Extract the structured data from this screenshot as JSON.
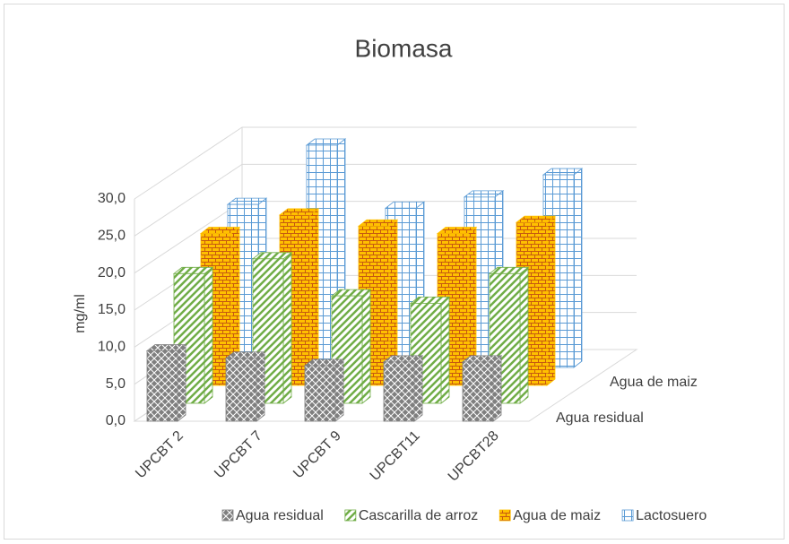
{
  "chart_data": {
    "type": "bar3d",
    "title": "Biomasa",
    "y_label": "mg/ml",
    "categories": [
      "UPCBT 2",
      "UPCBT 7",
      "UPCBT 9",
      "UPCBT11",
      "UPCBT28"
    ],
    "series": [
      {
        "name": "Agua residual",
        "color": "#7f7f7f",
        "values": [
          9.5,
          8.5,
          7.5,
          8,
          8
        ]
      },
      {
        "name": "Cascarilla de arroz",
        "color": "#70ad47",
        "values": [
          17.5,
          19.5,
          14.5,
          13.5,
          17.5
        ]
      },
      {
        "name": "Agua de maiz",
        "color": "#ffc000",
        "values": [
          20.5,
          23,
          21.5,
          20.5,
          22
        ]
      },
      {
        "name": "Lactosuero",
        "color": "#5b9bd5",
        "values": [
          22,
          30,
          21.5,
          23,
          26
        ]
      }
    ],
    "ylim": [
      0,
      30
    ],
    "yticks": [
      {
        "value": 0,
        "label": "0,0"
      },
      {
        "value": 5,
        "label": "5,0"
      },
      {
        "value": 10,
        "label": "10,0"
      },
      {
        "value": 15,
        "label": "15,0"
      },
      {
        "value": 20,
        "label": "20,0"
      },
      {
        "value": 25,
        "label": "25,0"
      },
      {
        "value": 30,
        "label": "30,0"
      }
    ],
    "grid": true,
    "legend": "bottom"
  }
}
